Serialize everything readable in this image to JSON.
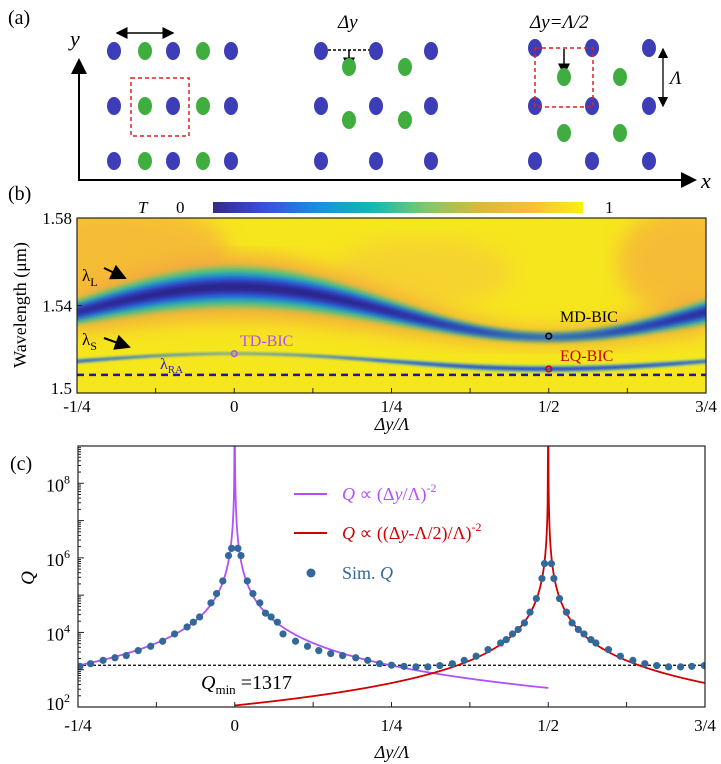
{
  "panel_a": {
    "label": "(a)",
    "axis_x": "x",
    "axis_y": "y",
    "shift_label": "Δy",
    "half_shift_label": "Δy=Λ/2",
    "period_label": "Λ",
    "colors": {
      "blue": "#3d3db8",
      "green": "#3fae3f",
      "box": "#e02020"
    }
  },
  "chart_data": [
    {
      "panel": "(b)",
      "type": "heatmap",
      "xlabel": "Δy/Λ",
      "ylabel": "Wavelength (μm)",
      "xlim": [
        -0.25,
        0.75
      ],
      "ylim": [
        1.5,
        1.58
      ],
      "xticks": [
        {
          "v": -0.25,
          "label": "-1/4"
        },
        {
          "v": 0,
          "label": "0"
        },
        {
          "v": 0.25,
          "label": "1/4"
        },
        {
          "v": 0.5,
          "label": "1/2"
        },
        {
          "v": 0.75,
          "label": "3/4"
        }
      ],
      "yticks": [
        {
          "v": 1.5,
          "label": "1.5"
        },
        {
          "v": 1.54,
          "label": "1.54"
        },
        {
          "v": 1.58,
          "label": "1.58"
        }
      ],
      "colorbar": {
        "title": "T",
        "min_label": "0",
        "max_label": "1",
        "colormap": [
          "#352a87",
          "#3a4fe0",
          "#1a90dc",
          "#11b8b5",
          "#7cc96a",
          "#d7b93e",
          "#fbbd3a",
          "#f9f00f"
        ]
      },
      "modes": [
        {
          "name": "λL",
          "sub": "L",
          "center": 1.537,
          "amplitude": 0.0115
        },
        {
          "name": "λS",
          "sub": "S",
          "center": 1.5145,
          "amplitude": 0.0035
        }
      ],
      "rayleigh_anomaly": {
        "label": "λ",
        "sub": "RA",
        "wavelength": 1.5083
      },
      "bics": [
        {
          "label": "TD-BIC",
          "x": 0,
          "wavelength": 1.518,
          "color": "#b050ff"
        },
        {
          "label": "MD-BIC",
          "x": 0.5,
          "wavelength": 1.526,
          "color": "#000000"
        },
        {
          "label": "EQ-BIC",
          "x": 0.5,
          "wavelength": 1.511,
          "color": "#d00000"
        }
      ]
    },
    {
      "panel": "(c)",
      "type": "line+scatter",
      "xlabel": "Δy/Λ",
      "ylabel": "Q",
      "xlim": [
        -0.25,
        0.75
      ],
      "ylim": [
        100,
        1000000000
      ],
      "yscale": "log",
      "xticks": [
        {
          "v": -0.25,
          "label": "-1/4"
        },
        {
          "v": 0,
          "label": "0"
        },
        {
          "v": 0.25,
          "label": "1/4"
        },
        {
          "v": 0.5,
          "label": "1/2"
        },
        {
          "v": 0.75,
          "label": "3/4"
        }
      ],
      "yticks": [
        {
          "v": 100,
          "base": "10",
          "exp": "2"
        },
        {
          "v": 10000,
          "base": "10",
          "exp": "4"
        },
        {
          "v": 1000000,
          "base": "10",
          "exp": "6"
        },
        {
          "v": 100000000,
          "base": "10",
          "exp": "8"
        }
      ],
      "legend_position": "top-center",
      "series": [
        {
          "name": "Q ∝ (Δy/Λ)^-2",
          "type": "line",
          "color": "#b050ff",
          "coef": 81,
          "center": 0,
          "x_range": [
            -0.25,
            0.5
          ],
          "legend": {
            "q": "Q",
            "mid": " ∝ (Δ",
            "y": "y",
            "end": "/Λ)",
            "exp": "-2"
          }
        },
        {
          "name": "Q ∝ ((Δy-Λ/2)/Λ)^-2",
          "type": "line",
          "color": "#d00000",
          "coef": 27.5,
          "center": 0.5,
          "x_range": [
            0,
            0.75
          ],
          "legend": {
            "q": "Q",
            "mid": " ∝ ((Δ",
            "y": "y",
            "end": "-Λ/2)/Λ)",
            "exp": "-2"
          }
        },
        {
          "name": "Sim. Q",
          "type": "scatter",
          "color": "#33689b",
          "legend": {
            "text": "Sim. ",
            "q": "Q"
          },
          "x": [
            -0.247,
            -0.23,
            -0.21,
            -0.191,
            -0.173,
            -0.154,
            -0.134,
            -0.115,
            -0.096,
            -0.076,
            -0.066,
            -0.056,
            -0.038,
            -0.029,
            -0.019,
            -0.01,
            -0.005,
            0.005,
            0.01,
            0.02,
            0.029,
            0.04,
            0.049,
            0.058,
            0.068,
            0.077,
            0.097,
            0.116,
            0.134,
            0.153,
            0.172,
            0.193,
            0.212,
            0.231,
            0.25,
            0.27,
            0.289,
            0.308,
            0.327,
            0.347,
            0.366,
            0.385,
            0.404,
            0.424,
            0.433,
            0.443,
            0.452,
            0.462,
            0.471,
            0.481,
            0.49,
            0.494,
            0.505,
            0.509,
            0.518,
            0.529,
            0.538,
            0.548,
            0.557,
            0.568,
            0.576,
            0.596,
            0.615,
            0.635,
            0.654,
            0.673,
            0.692,
            0.711,
            0.729,
            0.749
          ],
          "y": [
            1230,
            1450,
            1780,
            2090,
            2400,
            3250,
            4250,
            5800,
            9100,
            14000,
            18800,
            26000,
            62000,
            110000,
            240000,
            1150000,
            1800000,
            1800000,
            1150000,
            240000,
            110000,
            62000,
            33000,
            26000,
            18800,
            9100,
            5800,
            4250,
            3250,
            2700,
            2400,
            2090,
            1780,
            1450,
            1320,
            1230,
            1190,
            1190,
            1290,
            1450,
            1780,
            2300,
            3450,
            5200,
            6400,
            9100,
            12000,
            18000,
            35000,
            81000,
            280000,
            700000,
            700000,
            280000,
            81000,
            35000,
            18000,
            12000,
            9100,
            6400,
            5200,
            3450,
            2300,
            1780,
            1450,
            1290,
            1190,
            1190,
            1230,
            1290
          ]
        }
      ],
      "reference_line": {
        "value": 1317,
        "label_q": "Q",
        "label_sub": "min",
        "label_value": " =1317"
      }
    }
  ]
}
